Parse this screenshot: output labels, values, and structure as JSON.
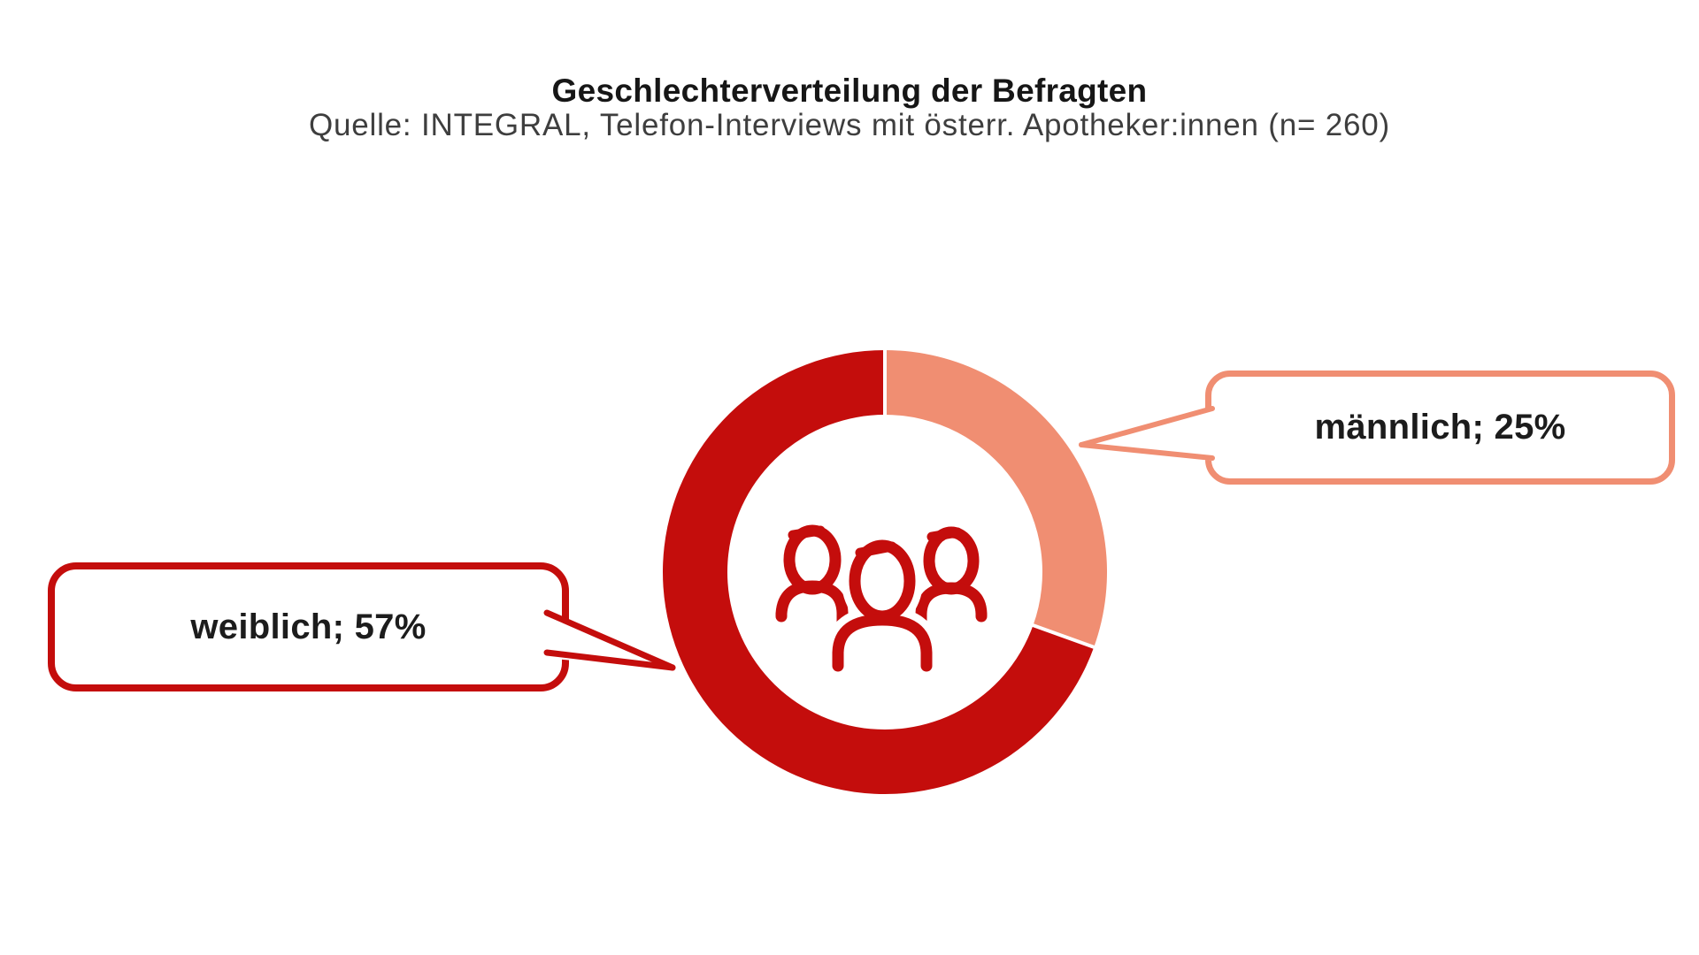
{
  "header": {
    "title": "Geschlechterverteilung der Befragten",
    "subtitle": "Quelle: INTEGRAL, Telefon-Interviews mit österr. Apotheker:innen (n= 260)"
  },
  "chart_data": {
    "type": "pie",
    "variant": "donut",
    "title": "Geschlechterverteilung der Befragten",
    "source": "Quelle: INTEGRAL, Telefon-Interviews mit österr. Apotheker:innen (n= 260)",
    "sample_size": 260,
    "categories": [
      "männlich",
      "weiblich"
    ],
    "values": [
      25,
      57
    ],
    "unit": "%",
    "normalize_to_sum": true,
    "series_colors": [
      "#F08E72",
      "#C40D0C"
    ],
    "start_angle_deg": 0,
    "direction": "clockwise",
    "hole_ratio": 0.71,
    "separator_color": "#ffffff",
    "legend": "none",
    "center_icon": "people-group-icon",
    "callouts": [
      {
        "label": "männlich; 25%",
        "category": "männlich",
        "value": 25,
        "border_color": "#F08E72",
        "text_color": "#1c1c1c"
      },
      {
        "label": "weiblich; 57%",
        "category": "weiblich",
        "value": 57,
        "border_color": "#C40D0C",
        "text_color": "#1c1c1c"
      }
    ]
  },
  "colors": {
    "background": "#ffffff",
    "male_accent": "#F08E72",
    "female_accent": "#C40D0C",
    "title_text": "#161616",
    "subtitle_text": "#3e3e3e"
  }
}
